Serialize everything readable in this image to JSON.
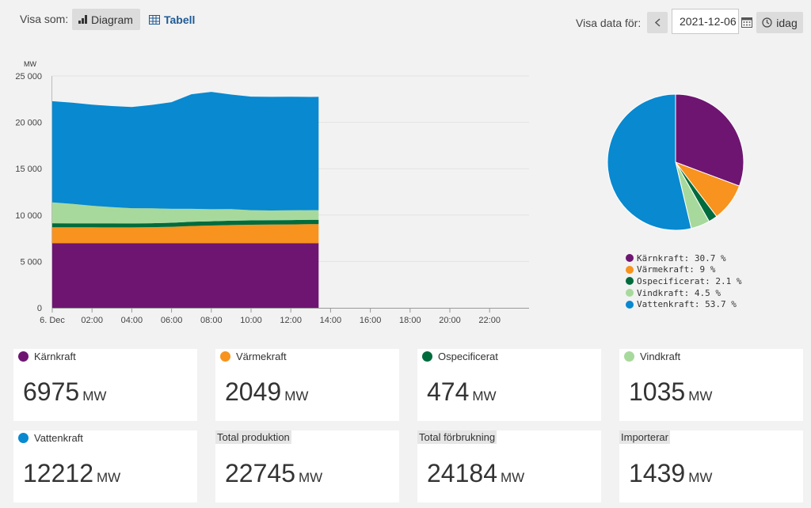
{
  "header": {
    "view_label": "Visa som:",
    "diagram_label": "Diagram",
    "table_label": "Tabell",
    "date_label": "Visa data för:",
    "date_value": "2021-12-06",
    "today_label": "idag"
  },
  "chart_data": {
    "type": "area",
    "stacked": true,
    "ylabel": "MW",
    "ylim": [
      0,
      25000
    ],
    "yticks": [
      "0",
      "5 000",
      "10 000",
      "15 000",
      "20 000",
      "25 000"
    ],
    "xticks": [
      "6. Dec",
      "02:00",
      "04:00",
      "06:00",
      "08:00",
      "10:00",
      "12:00",
      "14:00",
      "16:00",
      "18:00",
      "20:00",
      "22:00"
    ],
    "x_hours": [
      0,
      1,
      2,
      3,
      4,
      5,
      6,
      7,
      8,
      9,
      10,
      11,
      12,
      13,
      13.4
    ],
    "series": [
      {
        "name": "Kärnkraft",
        "color": "#6e1571",
        "values": [
          6975,
          6975,
          6975,
          6975,
          6975,
          6975,
          6975,
          6975,
          6975,
          6975,
          6975,
          6975,
          6975,
          6975,
          6975
        ]
      },
      {
        "name": "Värmekraft",
        "color": "#f7931e",
        "values": [
          1700,
          1700,
          1700,
          1690,
          1690,
          1720,
          1760,
          1850,
          1900,
          1950,
          1980,
          2000,
          2020,
          2040,
          2049
        ]
      },
      {
        "name": "Ospecificerat",
        "color": "#006b3c",
        "values": [
          450,
          440,
          430,
          440,
          430,
          430,
          440,
          450,
          460,
          470,
          470,
          470,
          470,
          474,
          474
        ]
      },
      {
        "name": "Vindkraft",
        "color": "#a8d99c",
        "values": [
          2250,
          2100,
          1900,
          1750,
          1650,
          1600,
          1500,
          1400,
          1300,
          1250,
          1100,
          1050,
          1050,
          1040,
          1035
        ]
      },
      {
        "name": "Vattenkraft",
        "color": "#0889d0",
        "values": [
          10900,
          10900,
          10900,
          10900,
          10900,
          11150,
          11500,
          12350,
          12650,
          12350,
          12250,
          12250,
          12250,
          12212,
          12212
        ]
      }
    ]
  },
  "pie": {
    "legend": [
      {
        "name": "Kärnkraft",
        "label": "Kärnkraft: 30.7 %",
        "value": 30.7,
        "color": "#6e1571"
      },
      {
        "name": "Värmekraft",
        "label": "Värmekraft: 9 %",
        "value": 9,
        "color": "#f7931e"
      },
      {
        "name": "Ospecificerat",
        "label": "Ospecificerat: 2.1 %",
        "value": 2.1,
        "color": "#006b3c"
      },
      {
        "name": "Vindkraft",
        "label": "Vindkraft: 4.5 %",
        "value": 4.5,
        "color": "#a8d99c"
      },
      {
        "name": "Vattenkraft",
        "label": "Vattenkraft: 53.7 %",
        "value": 53.7,
        "color": "#0889d0"
      }
    ]
  },
  "cards": [
    {
      "label": "Kärnkraft",
      "value": "6975",
      "unit": "MW",
      "color": "#6e1571"
    },
    {
      "label": "Värmekraft",
      "value": "2049",
      "unit": "MW",
      "color": "#f7931e"
    },
    {
      "label": "Ospecificerat",
      "value": "474",
      "unit": "MW",
      "color": "#006b3c"
    },
    {
      "label": "Vindkraft",
      "value": "1035",
      "unit": "MW",
      "color": "#a8d99c"
    },
    {
      "label": "Vattenkraft",
      "value": "12212",
      "unit": "MW",
      "color": "#0889d0"
    },
    {
      "label": "Total produktion",
      "value": "22745",
      "unit": "MW"
    },
    {
      "label": "Total förbrukning",
      "value": "24184",
      "unit": "MW"
    },
    {
      "label": "Importerar",
      "value": "1439",
      "unit": "MW"
    }
  ]
}
